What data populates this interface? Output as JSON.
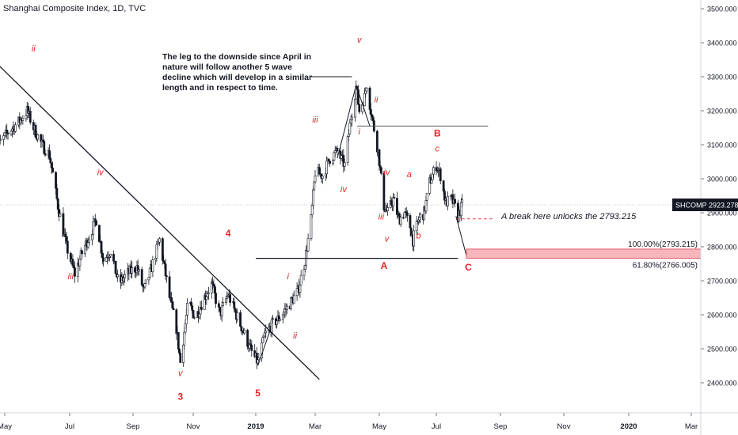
{
  "header": {
    "title": "Shanghai Composite Index, 1D, TVC"
  },
  "colors": {
    "candle": "#131722",
    "wave_label": "#e02424",
    "trendline": "#131722",
    "target_zone_fill": "#f7b6bc",
    "target_zone_border": "#e0404e",
    "break_line": "#e0404e",
    "axis_text": "#131722"
  },
  "annotations": {
    "note": "The leg to the downside since April in nature will follow another 5 wave decline which will develop in a similar length and in respect to time.",
    "break_note": "A break here unlocks the 2793.215"
  },
  "chart_data": {
    "type": "candlestick",
    "title": "Shanghai Composite Index, 1D, TVC",
    "xlabel": "",
    "ylabel": "",
    "ylim": [
      2300,
      3530
    ],
    "grid": false,
    "y_ticks": [
      2400,
      2500,
      2600,
      2700,
      2800,
      2900,
      3000,
      3100,
      3200,
      3300,
      3400,
      3500
    ],
    "y_tick_labels": [
      "2400.000",
      "2500.000",
      "2600.000",
      "2700.000",
      "2800.000",
      "2900.000",
      "3000.000",
      "3100.000",
      "3200.000",
      "3300.000",
      "3400.000",
      "3500.000"
    ],
    "x_tick_labels": [
      "May",
      "Jul",
      "Sep",
      "Nov",
      "2019",
      "Mar",
      "May",
      "Jul",
      "Sep",
      "Nov",
      "2020",
      "Mar"
    ],
    "x_tick_dates": [
      "2018-05-01",
      "2018-07-01",
      "2018-09-01",
      "2018-11-01",
      "2019-01-01",
      "2019-03-01",
      "2019-05-01",
      "2019-07-01",
      "2019-09-01",
      "2019-11-01",
      "2020-01-01",
      "2020-03-01"
    ],
    "bold_x_labels": [
      "2019",
      "2020"
    ],
    "current_price": {
      "symbol": "SHCOMP",
      "value": 2923.278,
      "label": "2923.278"
    },
    "price_path": [
      [
        "2018-04-20",
        3080
      ],
      [
        "2018-05-05",
        3140
      ],
      [
        "2018-05-15",
        3170
      ],
      [
        "2018-05-22",
        3200
      ],
      [
        "2018-05-28",
        3150
      ],
      [
        "2018-06-05",
        3100
      ],
      [
        "2018-06-12",
        3070
      ],
      [
        "2018-06-20",
        2920
      ],
      [
        "2018-06-28",
        2800
      ],
      [
        "2018-07-06",
        2720
      ],
      [
        "2018-07-14",
        2790
      ],
      [
        "2018-07-20",
        2830
      ],
      [
        "2018-07-27",
        2880
      ],
      [
        "2018-08-03",
        2760
      ],
      [
        "2018-08-10",
        2790
      ],
      [
        "2018-08-18",
        2690
      ],
      [
        "2018-08-26",
        2720
      ],
      [
        "2018-09-05",
        2740
      ],
      [
        "2018-09-12",
        2670
      ],
      [
        "2018-09-20",
        2740
      ],
      [
        "2018-09-28",
        2820
      ],
      [
        "2018-10-08",
        2650
      ],
      [
        "2018-10-15",
        2560
      ],
      [
        "2018-10-19",
        2460
      ],
      [
        "2018-10-27",
        2640
      ],
      [
        "2018-11-03",
        2590
      ],
      [
        "2018-11-10",
        2640
      ],
      [
        "2018-11-19",
        2690
      ],
      [
        "2018-11-27",
        2600
      ],
      [
        "2018-12-05",
        2660
      ],
      [
        "2018-12-13",
        2600
      ],
      [
        "2018-12-20",
        2550
      ],
      [
        "2018-12-28",
        2490
      ],
      [
        "2019-01-03",
        2460
      ],
      [
        "2019-01-10",
        2540
      ],
      [
        "2019-01-17",
        2570
      ],
      [
        "2019-01-24",
        2590
      ],
      [
        "2019-02-01",
        2620
      ],
      [
        "2019-02-12",
        2670
      ],
      [
        "2019-02-19",
        2760
      ],
      [
        "2019-02-25",
        2880
      ],
      [
        "2019-03-01",
        3020
      ],
      [
        "2019-03-08",
        3010
      ],
      [
        "2019-03-15",
        3060
      ],
      [
        "2019-03-22",
        3080
      ],
      [
        "2019-03-29",
        3040
      ],
      [
        "2019-04-04",
        3180
      ],
      [
        "2019-04-09",
        3270
      ],
      [
        "2019-04-12",
        3200
      ],
      [
        "2019-04-17",
        3240
      ],
      [
        "2019-04-19",
        3280
      ],
      [
        "2019-04-24",
        3180
      ],
      [
        "2019-04-30",
        3080
      ],
      [
        "2019-05-06",
        2920
      ],
      [
        "2019-05-10",
        2900
      ],
      [
        "2019-05-16",
        2940
      ],
      [
        "2019-05-22",
        2880
      ],
      [
        "2019-05-28",
        2900
      ],
      [
        "2019-06-03",
        2860
      ],
      [
        "2019-06-06",
        2820
      ],
      [
        "2019-06-12",
        2880
      ],
      [
        "2019-06-18",
        2900
      ],
      [
        "2019-06-24",
        2990
      ],
      [
        "2019-07-01",
        3040
      ],
      [
        "2019-07-05",
        3010
      ],
      [
        "2019-07-10",
        2930
      ],
      [
        "2019-07-16",
        2940
      ],
      [
        "2019-07-22",
        2890
      ],
      [
        "2019-07-26",
        2923
      ]
    ],
    "overlays": {
      "downtrend_line": [
        [
          "2018-04-20",
          3350
        ],
        [
          "2019-03-05",
          2410
        ]
      ],
      "support_line": {
        "from": "2019-01-01",
        "to": "2019-07-22",
        "y": 2766
      },
      "b_level_line": {
        "from": "2019-04-10",
        "to": "2019-08-20",
        "y": 3155
      },
      "note_pointer": {
        "from": "2019-02-25",
        "to": "2019-04-05",
        "y": 3300
      },
      "break_line": {
        "from": "2019-07-20",
        "to": "2019-08-25",
        "y": 2882
      },
      "projection": [
        [
          "2019-07-20",
          2890
        ],
        [
          "2019-07-30",
          2775
        ]
      ],
      "wave_i_ii_path": [
        [
          "2019-03-22",
          3060
        ],
        [
          "2019-04-09",
          3275
        ],
        [
          "2019-04-22",
          3155
        ]
      ],
      "wave_1_path": [
        [
          "2019-01-03",
          2450
        ],
        [
          "2019-01-16",
          2560
        ]
      ]
    },
    "target_zone": {
      "from": "2019-07-30",
      "to": "2020-03-31",
      "y_low": 2766.005,
      "y_high": 2793.215,
      "label_top": "100.00%(2793.215)",
      "label_bottom": "61.80%(2766.005)"
    },
    "wave_labels": [
      {
        "text": "ii",
        "date": "2018-05-28",
        "y": 3375,
        "style": "italic"
      },
      {
        "text": "iv",
        "date": "2018-07-31",
        "y": 3010,
        "style": "italic"
      },
      {
        "text": "iii",
        "date": "2018-07-02",
        "y": 2705,
        "style": "italic"
      },
      {
        "text": "v",
        "date": "2018-10-19",
        "y": 2420,
        "style": "italic"
      },
      {
        "text": "3",
        "date": "2018-10-19",
        "y": 2350,
        "style": "bold"
      },
      {
        "text": "4",
        "date": "2018-12-05",
        "y": 2830,
        "style": "bold"
      },
      {
        "text": "5",
        "date": "2019-01-03",
        "y": 2360,
        "style": "bold"
      },
      {
        "text": "i",
        "date": "2019-02-02",
        "y": 2705,
        "style": "italic"
      },
      {
        "text": "ii",
        "date": "2019-02-09",
        "y": 2530,
        "style": "italic"
      },
      {
        "text": "iii",
        "date": "2019-03-01",
        "y": 3165,
        "style": "italic"
      },
      {
        "text": "iv",
        "date": "2019-03-28",
        "y": 2960,
        "style": "italic"
      },
      {
        "text": "v",
        "date": "2019-04-12",
        "y": 3400,
        "style": "italic"
      },
      {
        "text": "i",
        "date": "2019-04-12",
        "y": 3130,
        "style": "italic"
      },
      {
        "text": "ii",
        "date": "2019-04-28",
        "y": 3225,
        "style": "italic"
      },
      {
        "text": "iii",
        "date": "2019-05-03",
        "y": 2880,
        "style": "italic"
      },
      {
        "text": "iv",
        "date": "2019-05-09",
        "y": 3010,
        "style": "italic"
      },
      {
        "text": "v",
        "date": "2019-05-09",
        "y": 2815,
        "style": "italic"
      },
      {
        "text": "a",
        "date": "2019-06-02",
        "y": 3005,
        "style": "italic"
      },
      {
        "text": "b",
        "date": "2019-06-12",
        "y": 2825,
        "style": "italic"
      },
      {
        "text": "c",
        "date": "2019-07-02",
        "y": 3080,
        "style": "italic"
      },
      {
        "text": "A",
        "date": "2019-05-06",
        "y": 2735,
        "style": "bold"
      },
      {
        "text": "B",
        "date": "2019-07-02",
        "y": 3125,
        "style": "bold"
      },
      {
        "text": "C",
        "date": "2019-08-01",
        "y": 2730,
        "style": "bold"
      }
    ]
  }
}
